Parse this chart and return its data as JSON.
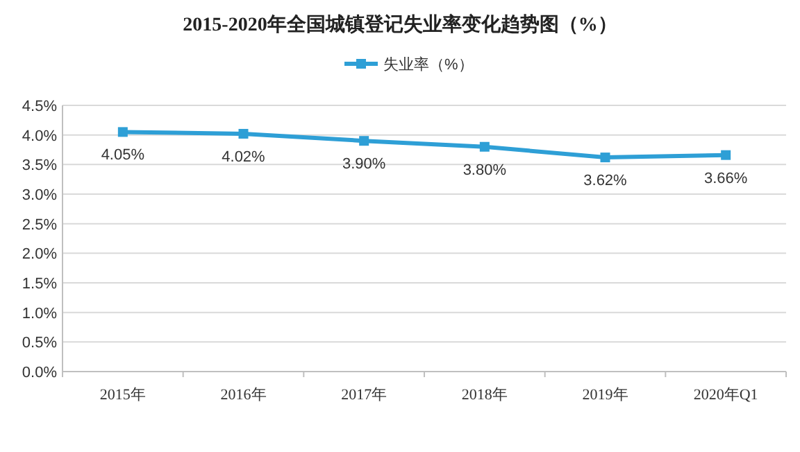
{
  "chart_data": {
    "type": "line",
    "title": "2015-2020年全国城镇登记失业率变化趋势图（%）",
    "categories": [
      "2015年",
      "2016年",
      "2017年",
      "2018年",
      "2019年",
      "2020年Q1"
    ],
    "series": [
      {
        "name": "失业率（%）",
        "color": "#2e9fd6",
        "values": [
          4.05,
          4.02,
          3.9,
          3.8,
          3.62,
          3.66
        ],
        "value_labels": [
          "4.05%",
          "4.02%",
          "3.90%",
          "3.80%",
          "3.62%",
          "3.66%"
        ]
      }
    ],
    "ylim": [
      0,
      4.5
    ],
    "yticks": [
      {
        "value": 0,
        "label": "0.0%"
      },
      {
        "value": 0.5,
        "label": "0.5%"
      },
      {
        "value": 1,
        "label": "1.0%"
      },
      {
        "value": 1.5,
        "label": "1.5%"
      },
      {
        "value": 2,
        "label": "2.0%"
      },
      {
        "value": 2.5,
        "label": "2.5%"
      },
      {
        "value": 3,
        "label": "3.0%"
      },
      {
        "value": 3.5,
        "label": "3.5%"
      },
      {
        "value": 4,
        "label": "4.0%"
      },
      {
        "value": 4.5,
        "label": "4.5%"
      }
    ],
    "grid": "y",
    "legend": "top",
    "marker": "square",
    "line_style": "solid"
  }
}
